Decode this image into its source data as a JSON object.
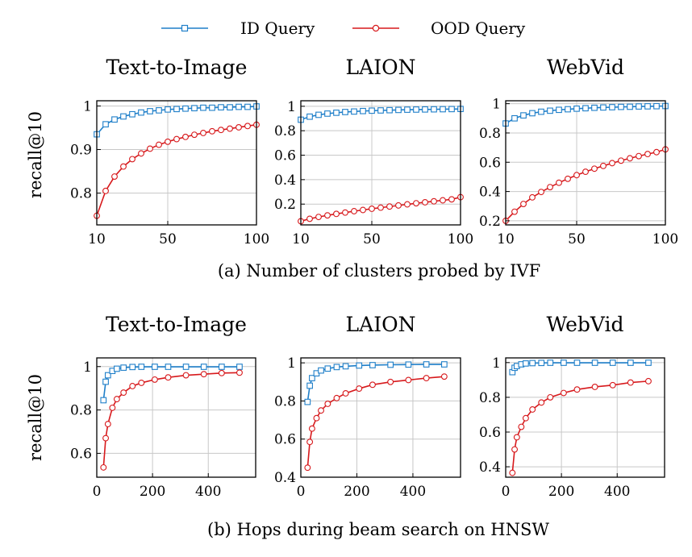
{
  "legend": {
    "id_label": "ID Query",
    "ood_label": "OOD Query"
  },
  "colors": {
    "id": "#1f7fc9",
    "ood": "#d7191c"
  },
  "captions": {
    "a": "(a) Number of clusters probed by IVF",
    "b": "(b) Hops during beam search on HNSW"
  },
  "ylabel": "recall@10",
  "chart_data": [
    {
      "type": "line",
      "title": "Text-to-Image",
      "group": "a",
      "xlim": [
        10,
        100
      ],
      "ylim": [
        0.727,
        1.012
      ],
      "xticks": [
        10,
        50,
        100
      ],
      "yticks": [
        0.8,
        0.9,
        1
      ],
      "ytick_labels": [
        "0.8",
        "0.9",
        "1"
      ],
      "x": [
        10,
        15,
        20,
        25,
        30,
        35,
        40,
        45,
        50,
        55,
        60,
        65,
        70,
        75,
        80,
        85,
        90,
        95,
        100
      ],
      "series": [
        {
          "name": "ID Query",
          "marker": "square",
          "values": [
            0.935,
            0.958,
            0.969,
            0.976,
            0.981,
            0.985,
            0.988,
            0.99,
            0.992,
            0.993,
            0.994,
            0.995,
            0.996,
            0.996,
            0.997,
            0.997,
            0.998,
            0.998,
            0.999
          ]
        },
        {
          "name": "OOD Query",
          "marker": "circle",
          "values": [
            0.748,
            0.805,
            0.838,
            0.861,
            0.878,
            0.891,
            0.902,
            0.911,
            0.918,
            0.924,
            0.929,
            0.934,
            0.938,
            0.942,
            0.945,
            0.948,
            0.951,
            0.954,
            0.957
          ]
        }
      ]
    },
    {
      "type": "line",
      "title": "LAION",
      "group": "a",
      "xlim": [
        10,
        100
      ],
      "ylim": [
        0.03,
        1.045
      ],
      "xticks": [
        10,
        50,
        100
      ],
      "yticks": [
        0.2,
        0.4,
        0.6,
        0.8,
        1
      ],
      "ytick_labels": [
        "0.2",
        "0.4",
        "0.6",
        "0.8",
        "1"
      ],
      "x": [
        10,
        15,
        20,
        25,
        30,
        35,
        40,
        45,
        50,
        55,
        60,
        65,
        70,
        75,
        80,
        85,
        90,
        95,
        100
      ],
      "series": [
        {
          "name": "ID Query",
          "marker": "square",
          "values": [
            0.89,
            0.915,
            0.93,
            0.94,
            0.947,
            0.953,
            0.957,
            0.961,
            0.964,
            0.966,
            0.968,
            0.97,
            0.972,
            0.973,
            0.974,
            0.975,
            0.976,
            0.977,
            0.978
          ]
        },
        {
          "name": "OOD Query",
          "marker": "circle",
          "values": [
            0.06,
            0.08,
            0.095,
            0.108,
            0.12,
            0.131,
            0.142,
            0.152,
            0.162,
            0.171,
            0.18,
            0.189,
            0.198,
            0.207,
            0.215,
            0.223,
            0.231,
            0.239,
            0.257
          ]
        }
      ]
    },
    {
      "type": "line",
      "title": "WebVid",
      "group": "a",
      "xlim": [
        10,
        100
      ],
      "ylim": [
        0.172,
        1.02
      ],
      "xticks": [
        10,
        50,
        100
      ],
      "yticks": [
        0.2,
        0.4,
        0.6,
        0.8,
        1
      ],
      "ytick_labels": [
        "0.2",
        "0.4",
        "0.6",
        "0.8",
        "1"
      ],
      "x": [
        10,
        15,
        20,
        25,
        30,
        35,
        40,
        45,
        50,
        55,
        60,
        65,
        70,
        75,
        80,
        85,
        90,
        95,
        100
      ],
      "series": [
        {
          "name": "ID Query",
          "marker": "square",
          "values": [
            0.865,
            0.9,
            0.92,
            0.935,
            0.945,
            0.952,
            0.958,
            0.962,
            0.966,
            0.969,
            0.972,
            0.974,
            0.976,
            0.978,
            0.979,
            0.981,
            0.982,
            0.983,
            0.984
          ]
        },
        {
          "name": "OOD Query",
          "marker": "circle",
          "values": [
            0.2,
            0.262,
            0.315,
            0.36,
            0.397,
            0.43,
            0.46,
            0.487,
            0.512,
            0.535,
            0.556,
            0.575,
            0.594,
            0.611,
            0.627,
            0.642,
            0.656,
            0.669,
            0.688
          ]
        }
      ]
    },
    {
      "type": "line",
      "title": "Text-to-Image",
      "group": "b",
      "xlim": [
        0,
        570
      ],
      "ylim": [
        0.49,
        1.04
      ],
      "xticks": [
        0,
        200,
        400
      ],
      "yticks": [
        0.6,
        0.8,
        1
      ],
      "ytick_labels": [
        "0.6",
        "0.8",
        "1"
      ],
      "x": [
        24,
        32,
        40,
        56,
        72,
        96,
        128,
        160,
        208,
        256,
        320,
        384,
        448,
        512
      ],
      "series": [
        {
          "name": "ID Query",
          "marker": "square",
          "values": [
            0.845,
            0.93,
            0.96,
            0.98,
            0.99,
            0.995,
            0.998,
            0.999,
            0.999,
            0.999,
            0.999,
            0.999,
            0.999,
            0.999
          ]
        },
        {
          "name": "OOD Query",
          "marker": "circle",
          "values": [
            0.535,
            0.67,
            0.735,
            0.81,
            0.85,
            0.88,
            0.91,
            0.925,
            0.94,
            0.95,
            0.96,
            0.965,
            0.97,
            0.972
          ]
        }
      ]
    },
    {
      "type": "line",
      "title": "LAION",
      "group": "b",
      "xlim": [
        0,
        570
      ],
      "ylim": [
        0.4,
        1.026
      ],
      "xticks": [
        0,
        200,
        400
      ],
      "yticks": [
        0.4,
        0.6,
        0.8,
        1
      ],
      "ytick_labels": [
        "0.4",
        "0.6",
        "0.8",
        "1"
      ],
      "x": [
        24,
        32,
        40,
        56,
        72,
        96,
        128,
        160,
        208,
        256,
        320,
        384,
        448,
        512
      ],
      "series": [
        {
          "name": "ID Query",
          "marker": "square",
          "values": [
            0.795,
            0.88,
            0.92,
            0.945,
            0.96,
            0.97,
            0.978,
            0.982,
            0.986,
            0.988,
            0.99,
            0.991,
            0.992,
            0.992
          ]
        },
        {
          "name": "OOD Query",
          "marker": "circle",
          "values": [
            0.45,
            0.585,
            0.655,
            0.71,
            0.75,
            0.785,
            0.815,
            0.84,
            0.865,
            0.885,
            0.9,
            0.91,
            0.92,
            0.928
          ]
        }
      ]
    },
    {
      "type": "line",
      "title": "WebVid",
      "group": "b",
      "xlim": [
        0,
        570
      ],
      "ylim": [
        0.34,
        1.027
      ],
      "xticks": [
        0,
        200,
        400
      ],
      "yticks": [
        0.4,
        0.6,
        0.8,
        1
      ],
      "ytick_labels": [
        "0.4",
        "0.6",
        "0.8",
        "1"
      ],
      "x": [
        24,
        32,
        40,
        56,
        72,
        96,
        128,
        160,
        208,
        256,
        320,
        384,
        448,
        512
      ],
      "series": [
        {
          "name": "ID Query",
          "marker": "square",
          "values": [
            0.945,
            0.97,
            0.98,
            0.99,
            0.995,
            0.997,
            0.998,
            0.999,
            0.999,
            0.999,
            0.999,
            0.999,
            0.999,
            0.999
          ]
        },
        {
          "name": "OOD Query",
          "marker": "circle",
          "values": [
            0.365,
            0.5,
            0.57,
            0.63,
            0.68,
            0.73,
            0.77,
            0.8,
            0.825,
            0.845,
            0.86,
            0.87,
            0.885,
            0.893
          ]
        }
      ]
    }
  ]
}
